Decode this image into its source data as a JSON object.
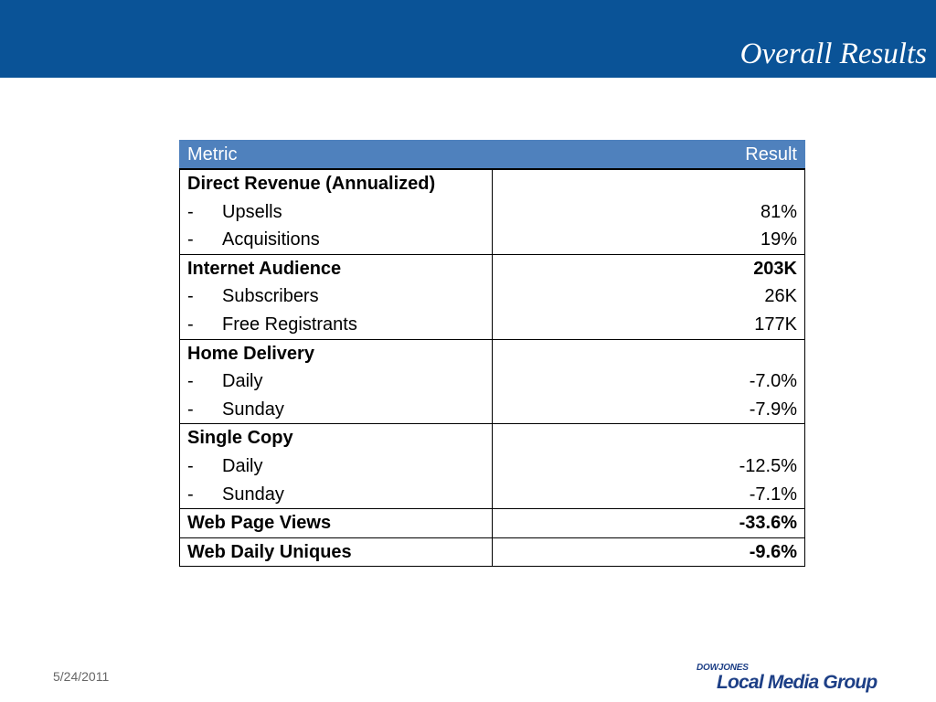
{
  "slide": {
    "title": "Overall Results",
    "date": "5/24/2011"
  },
  "table": {
    "headers": {
      "metric": "Metric",
      "result": "Result"
    },
    "groups": [
      {
        "label": "Direct Revenue (Annualized)",
        "value": "",
        "items": [
          {
            "bullet": "-",
            "label": "Upsells",
            "value": "81%"
          },
          {
            "bullet": "-",
            "label": "Acquisitions",
            "value": "19%"
          }
        ]
      },
      {
        "label": "Internet Audience",
        "value": "203K",
        "items": [
          {
            "bullet": "-",
            "label": "Subscribers",
            "value": "26K"
          },
          {
            "bullet": "-",
            "label": "Free Registrants",
            "value": "177K"
          }
        ]
      },
      {
        "label": "Home Delivery",
        "value": "",
        "items": [
          {
            "bullet": "-",
            "label": "Daily",
            "value": "-7.0%"
          },
          {
            "bullet": "-",
            "label": "Sunday",
            "value": "-7.9%"
          }
        ]
      },
      {
        "label": "Single Copy",
        "value": "",
        "items": [
          {
            "bullet": "-",
            "label": "Daily",
            "value": "-12.5%"
          },
          {
            "bullet": "-",
            "label": "Sunday",
            "value": "-7.1%"
          }
        ]
      },
      {
        "label": "Web Page Views",
        "value": "-33.6%",
        "items": []
      },
      {
        "label": "Web Daily Uniques",
        "value": "-9.6%",
        "items": []
      }
    ]
  },
  "logo": {
    "brand_small": "DOWJONES",
    "brand_main": "Local Media Group"
  },
  "colors": {
    "header_bar": "#0a5397",
    "table_header": "#4f81bd",
    "logo": "#1d3f86"
  }
}
